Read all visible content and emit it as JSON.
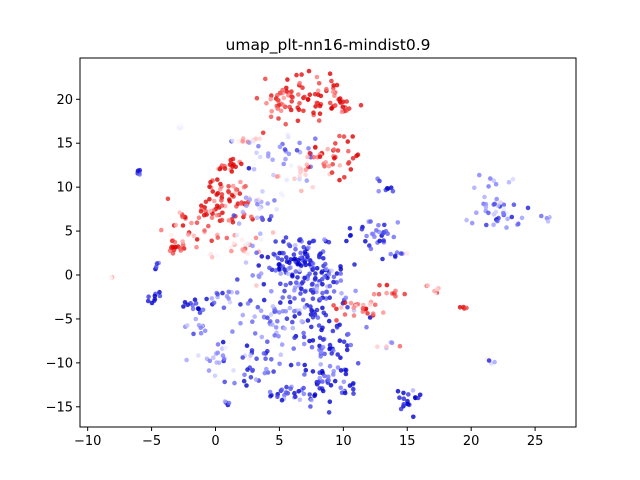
{
  "chart_data": {
    "type": "scatter",
    "title": "umap_plt-nn16-mindist0.9",
    "xlabel": "",
    "ylabel": "",
    "xlim": [
      -10.6,
      28.2
    ],
    "ylim": [
      -17.3,
      24.7
    ],
    "x_ticks": [
      -10,
      -5,
      0,
      5,
      10,
      15,
      20,
      25
    ],
    "y_ticks": [
      -15,
      -10,
      -5,
      0,
      5,
      10,
      15,
      20
    ],
    "grid": false,
    "legend": "none",
    "colormap": "seismic",
    "color_value_range": [
      -1,
      1
    ],
    "colors": {
      "low": "#0000cc",
      "mid": "#ffffff",
      "high": "#dd0000"
    },
    "series": [
      {
        "clusters": [
          {
            "x": 7.5,
            "y": 20.5,
            "sx": 1.4,
            "sy": 1.6,
            "n": 60,
            "c": 0.85
          },
          {
            "x": 9.8,
            "y": 19.2,
            "sx": 0.6,
            "sy": 0.6,
            "n": 18,
            "c": 0.9
          },
          {
            "x": 4.8,
            "y": 19.2,
            "sx": 0.9,
            "sy": 1.4,
            "n": 25,
            "c": 0.8
          },
          {
            "x": 5.2,
            "y": 14.0,
            "sx": 1.6,
            "sy": 1.2,
            "n": 30,
            "c": -0.4
          },
          {
            "x": 7.6,
            "y": 13.8,
            "sx": 0.5,
            "sy": 0.5,
            "n": 10,
            "c": 0.7
          },
          {
            "x": 9.5,
            "y": 13.2,
            "sx": 0.9,
            "sy": 1.1,
            "n": 30,
            "c": 0.8
          },
          {
            "x": 7.0,
            "y": 11.5,
            "sx": 1.2,
            "sy": 0.9,
            "n": 20,
            "c": 0.2
          },
          {
            "x": 1.2,
            "y": 12.4,
            "sx": 0.7,
            "sy": 0.4,
            "n": 18,
            "c": 0.85
          },
          {
            "x": 2.6,
            "y": 15.5,
            "sx": 0.6,
            "sy": 0.4,
            "n": 12,
            "c": 0.1
          },
          {
            "x": 0.5,
            "y": 9.7,
            "sx": 0.6,
            "sy": 0.6,
            "n": 20,
            "c": 0.9
          },
          {
            "x": 0.3,
            "y": 7.2,
            "sx": 1.4,
            "sy": 1.0,
            "n": 40,
            "c": 0.8
          },
          {
            "x": -2.2,
            "y": 5.5,
            "sx": 0.9,
            "sy": 1.0,
            "n": 25,
            "c": 0.7
          },
          {
            "x": -3.0,
            "y": 3.0,
            "sx": 0.5,
            "sy": 0.5,
            "n": 15,
            "c": 0.85
          },
          {
            "x": 2.0,
            "y": 9.0,
            "sx": 0.6,
            "sy": 0.8,
            "n": 12,
            "c": 0.6
          },
          {
            "x": 3.5,
            "y": 8.0,
            "sx": 1.0,
            "sy": 1.2,
            "n": 25,
            "c": -0.3
          },
          {
            "x": 1.5,
            "y": 3.5,
            "sx": 1.0,
            "sy": 1.0,
            "n": 25,
            "c": 0.2
          },
          {
            "x": 6.5,
            "y": 1.5,
            "sx": 1.5,
            "sy": 1.6,
            "n": 110,
            "c": -0.9
          },
          {
            "x": 8.0,
            "y": -2.0,
            "sx": 1.8,
            "sy": 1.8,
            "n": 80,
            "c": -0.7
          },
          {
            "x": 5.0,
            "y": -4.5,
            "sx": 1.5,
            "sy": 2.0,
            "n": 60,
            "c": -0.6
          },
          {
            "x": 8.5,
            "y": -9.0,
            "sx": 1.6,
            "sy": 2.4,
            "n": 70,
            "c": -0.8
          },
          {
            "x": 6.0,
            "y": -13.5,
            "sx": 1.3,
            "sy": 0.6,
            "n": 28,
            "c": -0.7
          },
          {
            "x": 9.5,
            "y": -12.5,
            "sx": 1.0,
            "sy": 1.0,
            "n": 25,
            "c": -0.85
          },
          {
            "x": 11.5,
            "y": -3.5,
            "sx": 1.0,
            "sy": 0.7,
            "n": 25,
            "c": 0.7
          },
          {
            "x": 13.5,
            "y": -2.0,
            "sx": 0.6,
            "sy": 0.6,
            "n": 12,
            "c": 0.6
          },
          {
            "x": 12.3,
            "y": 4.6,
            "sx": 1.0,
            "sy": 0.9,
            "n": 30,
            "c": -0.6
          },
          {
            "x": 14.0,
            "y": 2.2,
            "sx": 0.5,
            "sy": 0.3,
            "n": 8,
            "c": -0.7
          },
          {
            "x": 13.5,
            "y": 10.0,
            "sx": 0.4,
            "sy": 0.6,
            "n": 8,
            "c": -0.8
          },
          {
            "x": 13.5,
            "y": -8.0,
            "sx": 0.4,
            "sy": 0.5,
            "n": 7,
            "c": 0.3
          },
          {
            "x": 15.0,
            "y": -14.0,
            "sx": 0.6,
            "sy": 0.8,
            "n": 18,
            "c": -0.95
          },
          {
            "x": 17.5,
            "y": -1.5,
            "sx": 0.4,
            "sy": 0.3,
            "n": 7,
            "c": 0.4
          },
          {
            "x": 19.5,
            "y": -3.7,
            "sx": 0.2,
            "sy": 0.2,
            "n": 4,
            "c": 0.9
          },
          {
            "x": 21.8,
            "y": 8.0,
            "sx": 1.1,
            "sy": 1.5,
            "n": 40,
            "c": -0.5
          },
          {
            "x": 23.3,
            "y": 6.0,
            "sx": 0.6,
            "sy": 0.5,
            "n": 10,
            "c": -0.6
          },
          {
            "x": 26.0,
            "y": 6.5,
            "sx": 0.3,
            "sy": 0.2,
            "n": 5,
            "c": -0.3
          },
          {
            "x": 21.5,
            "y": -9.6,
            "sx": 0.2,
            "sy": 0.3,
            "n": 4,
            "c": -0.3
          },
          {
            "x": -6.0,
            "y": 11.7,
            "sx": 0.2,
            "sy": 0.2,
            "n": 6,
            "c": -1.0
          },
          {
            "x": -2.8,
            "y": 16.7,
            "sx": 0.2,
            "sy": 0.2,
            "n": 4,
            "c": -0.2
          },
          {
            "x": -8.2,
            "y": -0.2,
            "sx": 0.1,
            "sy": 0.1,
            "n": 3,
            "c": 0.0
          },
          {
            "x": -4.6,
            "y": 1.0,
            "sx": 0.2,
            "sy": 0.2,
            "n": 5,
            "c": -0.8
          },
          {
            "x": -4.8,
            "y": -2.5,
            "sx": 0.3,
            "sy": 0.5,
            "n": 10,
            "c": -0.7
          },
          {
            "x": -1.5,
            "y": -3.5,
            "sx": 0.5,
            "sy": 0.6,
            "n": 15,
            "c": -0.8
          },
          {
            "x": 0.0,
            "y": -9.5,
            "sx": 1.0,
            "sy": 0.9,
            "n": 25,
            "c": -0.3
          },
          {
            "x": 3.0,
            "y": -10.0,
            "sx": 0.7,
            "sy": 1.3,
            "n": 25,
            "c": -0.7
          },
          {
            "x": 1.0,
            "y": -14.5,
            "sx": 0.2,
            "sy": 0.2,
            "n": 4,
            "c": -0.9
          },
          {
            "x": 0.5,
            "y": -2.5,
            "sx": 0.8,
            "sy": 0.8,
            "n": 15,
            "c": -0.6
          },
          {
            "x": -1.5,
            "y": -6.0,
            "sx": 0.5,
            "sy": 0.5,
            "n": 10,
            "c": -0.4
          }
        ]
      }
    ]
  }
}
